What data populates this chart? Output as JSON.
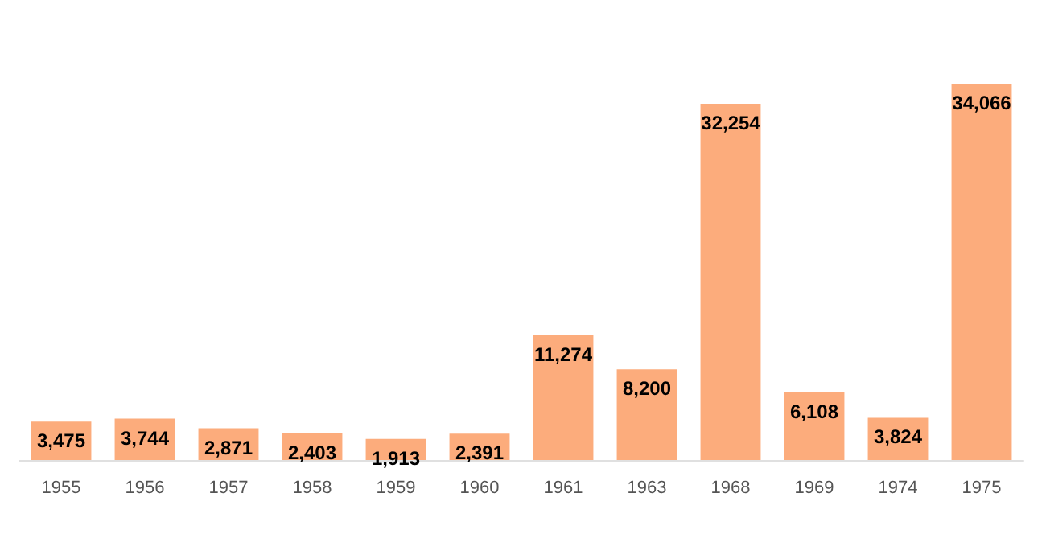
{
  "chart_data": {
    "type": "bar",
    "categories": [
      "1955",
      "1956",
      "1957",
      "1958",
      "1959",
      "1960",
      "1961",
      "1963",
      "1968",
      "1969",
      "1974",
      "1975"
    ],
    "values": [
      3475,
      3744,
      2871,
      2403,
      1913,
      2391,
      11274,
      8200,
      32254,
      6108,
      3824,
      34066
    ],
    "value_labels": [
      "3,475",
      "3,744",
      "2,871",
      "2,403",
      "1,913",
      "2,391",
      "11,274",
      "8,200",
      "32,254",
      "6,108",
      "3,824",
      "34,066"
    ],
    "color": "#fcac7c"
  }
}
